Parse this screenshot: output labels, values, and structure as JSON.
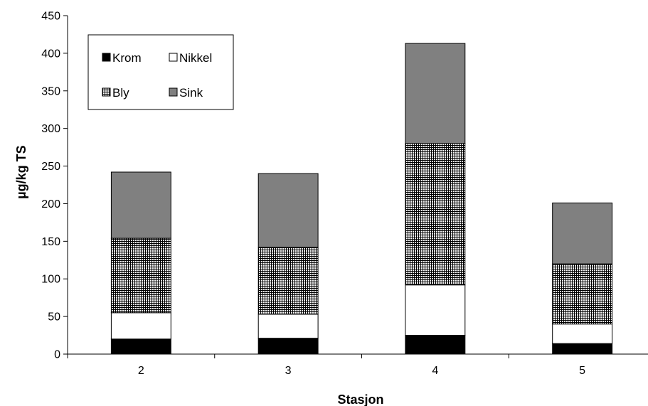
{
  "chart_data": {
    "type": "bar",
    "stacked": true,
    "title": "",
    "xlabel": "Stasjon",
    "ylabel": "µg/kg TS",
    "categories": [
      "2",
      "3",
      "4",
      "5"
    ],
    "ylim": [
      0,
      450
    ],
    "yticks": [
      0,
      50,
      100,
      150,
      200,
      250,
      300,
      350,
      400,
      450
    ],
    "grid": false,
    "legend_position": "top-left",
    "series": [
      {
        "name": "Krom",
        "values": [
          20,
          21,
          25,
          14
        ],
        "fill": "#000000"
      },
      {
        "name": "Nikkel",
        "values": [
          35,
          32,
          67,
          26
        ],
        "fill": "#ffffff"
      },
      {
        "name": "Bly",
        "values": [
          99,
          89,
          188,
          80
        ],
        "fill": "pattern-crosshatch"
      },
      {
        "name": "Sink",
        "values": [
          88,
          98,
          133,
          81
        ],
        "fill": "#808080"
      }
    ]
  }
}
